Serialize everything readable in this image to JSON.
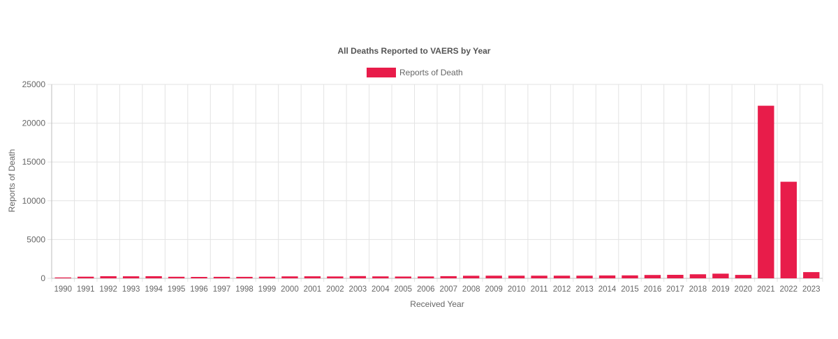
{
  "chart_data": {
    "type": "bar",
    "title": "All Deaths Reported to VAERS by Year",
    "xlabel": "Received Year",
    "ylabel": "Reports of Death",
    "ylim": [
      0,
      25000
    ],
    "yticks": [
      0,
      5000,
      10000,
      15000,
      20000,
      25000
    ],
    "grid": true,
    "legend_position": "top",
    "categories": [
      "1990",
      "1991",
      "1992",
      "1993",
      "1994",
      "1995",
      "1996",
      "1997",
      "1998",
      "1999",
      "2000",
      "2001",
      "2002",
      "2003",
      "2004",
      "2005",
      "2006",
      "2007",
      "2008",
      "2009",
      "2010",
      "2011",
      "2012",
      "2013",
      "2014",
      "2015",
      "2016",
      "2017",
      "2018",
      "2019",
      "2020",
      "2021",
      "2022",
      "2023"
    ],
    "series": [
      {
        "name": "Reports of Death",
        "color": "#e81c4a",
        "values": [
          110,
          210,
          270,
          260,
          270,
          200,
          180,
          190,
          190,
          210,
          250,
          260,
          240,
          290,
          250,
          230,
          240,
          280,
          330,
          340,
          340,
          340,
          340,
          340,
          370,
          380,
          430,
          450,
          520,
          600,
          440,
          22250,
          12450,
          800
        ]
      }
    ]
  }
}
